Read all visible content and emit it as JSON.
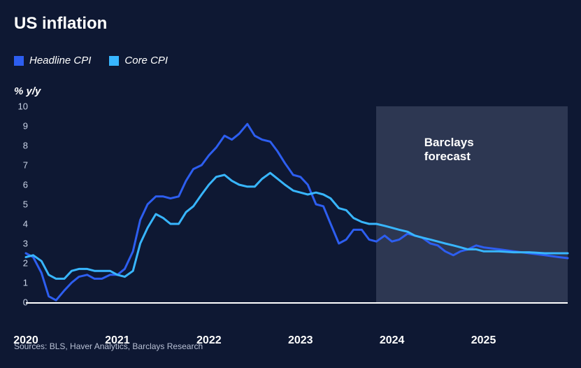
{
  "title": "US inflation",
  "ylabel": "% y/y",
  "legend": [
    {
      "label": "Headline CPI",
      "color": "#2d5ef0"
    },
    {
      "label": "Core CPI",
      "color": "#38b6ff"
    }
  ],
  "chart": {
    "type": "line",
    "background_color": "#0e1833",
    "text_color": "#ffffff",
    "axis_color": "#ffffff",
    "ylim": [
      0,
      10
    ],
    "ytick_step": 1,
    "yticks": [
      0,
      1,
      2,
      3,
      4,
      5,
      6,
      7,
      8,
      9,
      10
    ],
    "xlim": [
      2020.0,
      2025.92
    ],
    "xticks": [
      {
        "value": 2020,
        "label": "2020"
      },
      {
        "value": 2021,
        "label": "2021"
      },
      {
        "value": 2022,
        "label": "2022"
      },
      {
        "value": 2023,
        "label": "2023"
      },
      {
        "value": 2024,
        "label": "2024"
      },
      {
        "value": 2025,
        "label": "2025"
      }
    ],
    "forecast": {
      "start_x": 2023.83,
      "end_x": 2025.92,
      "label": "Barclays forecast",
      "fill": "rgba(160,170,195,0.22)",
      "label_fontsize": 17
    },
    "line_width": 3,
    "series": [
      {
        "name": "Headline CPI",
        "color": "#2d5ef0",
        "points": [
          [
            2020.0,
            2.5
          ],
          [
            2020.08,
            2.3
          ],
          [
            2020.17,
            1.5
          ],
          [
            2020.25,
            0.3
          ],
          [
            2020.33,
            0.1
          ],
          [
            2020.42,
            0.6
          ],
          [
            2020.5,
            1.0
          ],
          [
            2020.58,
            1.3
          ],
          [
            2020.67,
            1.4
          ],
          [
            2020.75,
            1.2
          ],
          [
            2020.83,
            1.2
          ],
          [
            2020.92,
            1.4
          ],
          [
            2021.0,
            1.4
          ],
          [
            2021.08,
            1.7
          ],
          [
            2021.17,
            2.6
          ],
          [
            2021.25,
            4.2
          ],
          [
            2021.33,
            5.0
          ],
          [
            2021.42,
            5.4
          ],
          [
            2021.5,
            5.4
          ],
          [
            2021.58,
            5.3
          ],
          [
            2021.67,
            5.4
          ],
          [
            2021.75,
            6.2
          ],
          [
            2021.83,
            6.8
          ],
          [
            2021.92,
            7.0
          ],
          [
            2022.0,
            7.5
          ],
          [
            2022.08,
            7.9
          ],
          [
            2022.17,
            8.5
          ],
          [
            2022.25,
            8.3
          ],
          [
            2022.33,
            8.6
          ],
          [
            2022.42,
            9.1
          ],
          [
            2022.5,
            8.5
          ],
          [
            2022.58,
            8.3
          ],
          [
            2022.67,
            8.2
          ],
          [
            2022.75,
            7.7
          ],
          [
            2022.83,
            7.1
          ],
          [
            2022.92,
            6.5
          ],
          [
            2023.0,
            6.4
          ],
          [
            2023.08,
            6.0
          ],
          [
            2023.17,
            5.0
          ],
          [
            2023.25,
            4.9
          ],
          [
            2023.33,
            4.0
          ],
          [
            2023.42,
            3.0
          ],
          [
            2023.5,
            3.2
          ],
          [
            2023.58,
            3.7
          ],
          [
            2023.67,
            3.7
          ],
          [
            2023.75,
            3.2
          ],
          [
            2023.83,
            3.1
          ],
          [
            2023.92,
            3.4
          ],
          [
            2024.0,
            3.1
          ],
          [
            2024.08,
            3.2
          ],
          [
            2024.17,
            3.5
          ],
          [
            2024.25,
            3.4
          ],
          [
            2024.33,
            3.3
          ],
          [
            2024.42,
            3.0
          ],
          [
            2024.5,
            2.9
          ],
          [
            2024.58,
            2.6
          ],
          [
            2024.67,
            2.4
          ],
          [
            2024.75,
            2.6
          ],
          [
            2024.83,
            2.7
          ],
          [
            2024.92,
            2.9
          ],
          [
            2025.0,
            2.8
          ],
          [
            2025.17,
            2.7
          ],
          [
            2025.33,
            2.6
          ],
          [
            2025.5,
            2.5
          ],
          [
            2025.67,
            2.4
          ],
          [
            2025.83,
            2.3
          ],
          [
            2025.92,
            2.25
          ]
        ]
      },
      {
        "name": "Core CPI",
        "color": "#38b6ff",
        "points": [
          [
            2020.0,
            2.3
          ],
          [
            2020.08,
            2.4
          ],
          [
            2020.17,
            2.1
          ],
          [
            2020.25,
            1.4
          ],
          [
            2020.33,
            1.2
          ],
          [
            2020.42,
            1.2
          ],
          [
            2020.5,
            1.6
          ],
          [
            2020.58,
            1.7
          ],
          [
            2020.67,
            1.7
          ],
          [
            2020.75,
            1.6
          ],
          [
            2020.83,
            1.6
          ],
          [
            2020.92,
            1.6
          ],
          [
            2021.0,
            1.4
          ],
          [
            2021.08,
            1.3
          ],
          [
            2021.17,
            1.6
          ],
          [
            2021.25,
            3.0
          ],
          [
            2021.33,
            3.8
          ],
          [
            2021.42,
            4.5
          ],
          [
            2021.5,
            4.3
          ],
          [
            2021.58,
            4.0
          ],
          [
            2021.67,
            4.0
          ],
          [
            2021.75,
            4.6
          ],
          [
            2021.83,
            4.9
          ],
          [
            2021.92,
            5.5
          ],
          [
            2022.0,
            6.0
          ],
          [
            2022.08,
            6.4
          ],
          [
            2022.17,
            6.5
          ],
          [
            2022.25,
            6.2
          ],
          [
            2022.33,
            6.0
          ],
          [
            2022.42,
            5.9
          ],
          [
            2022.5,
            5.9
          ],
          [
            2022.58,
            6.3
          ],
          [
            2022.67,
            6.6
          ],
          [
            2022.75,
            6.3
          ],
          [
            2022.83,
            6.0
          ],
          [
            2022.92,
            5.7
          ],
          [
            2023.0,
            5.6
          ],
          [
            2023.08,
            5.5
          ],
          [
            2023.17,
            5.6
          ],
          [
            2023.25,
            5.5
          ],
          [
            2023.33,
            5.3
          ],
          [
            2023.42,
            4.8
          ],
          [
            2023.5,
            4.7
          ],
          [
            2023.58,
            4.3
          ],
          [
            2023.67,
            4.1
          ],
          [
            2023.75,
            4.0
          ],
          [
            2023.83,
            4.0
          ],
          [
            2023.92,
            3.9
          ],
          [
            2024.0,
            3.8
          ],
          [
            2024.08,
            3.7
          ],
          [
            2024.17,
            3.6
          ],
          [
            2024.25,
            3.4
          ],
          [
            2024.33,
            3.3
          ],
          [
            2024.42,
            3.2
          ],
          [
            2024.5,
            3.1
          ],
          [
            2024.58,
            3.0
          ],
          [
            2024.67,
            2.9
          ],
          [
            2024.75,
            2.8
          ],
          [
            2024.83,
            2.7
          ],
          [
            2024.92,
            2.7
          ],
          [
            2025.0,
            2.6
          ],
          [
            2025.17,
            2.6
          ],
          [
            2025.33,
            2.55
          ],
          [
            2025.5,
            2.55
          ],
          [
            2025.67,
            2.5
          ],
          [
            2025.83,
            2.5
          ],
          [
            2025.92,
            2.5
          ]
        ]
      }
    ]
  },
  "sources": "Sources: BLS, Haver Analytics, Barclays Research",
  "title_fontsize": 24,
  "legend_fontsize": 15,
  "ylabel_fontsize": 15,
  "ytick_fontsize": 13,
  "xtick_fontsize": 16,
  "sources_fontsize": 12
}
